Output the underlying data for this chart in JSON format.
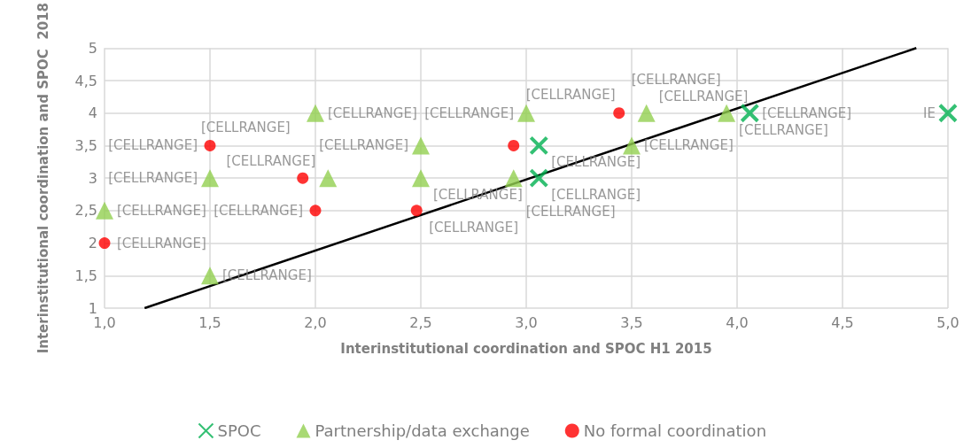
{
  "chart_data": {
    "type": "scatter",
    "xlabel": "Interinstitutional coordination and SPOC H1 2015",
    "ylabel": "Interinstitutional coordination and SPOC  2018",
    "xlim": [
      1,
      5
    ],
    "ylim": [
      1,
      5
    ],
    "xticks": [
      {
        "value": 1,
        "label": "1,0"
      },
      {
        "value": 1.5,
        "label": "1,5"
      },
      {
        "value": 2,
        "label": "2,0"
      },
      {
        "value": 2.5,
        "label": "2,5"
      },
      {
        "value": 3,
        "label": "3,0"
      },
      {
        "value": 3.5,
        "label": "3,5"
      },
      {
        "value": 4,
        "label": "4,0"
      },
      {
        "value": 4.5,
        "label": "4,5"
      },
      {
        "value": 5,
        "label": "5,0"
      }
    ],
    "yticks": [
      1,
      {
        "value": 1.5,
        "label": "1,5"
      },
      2,
      {
        "value": 2.5,
        "label": "2,5"
      },
      3,
      {
        "value": 3.5,
        "label": "3,5"
      },
      4,
      {
        "value": 4.5,
        "label": "4,5"
      },
      5
    ],
    "grid": true,
    "legend": "bottom",
    "series": [
      {
        "name": "SPOC",
        "color": "#00b050",
        "marker": "cross",
        "x": [
          3.06,
          3.06,
          4.06,
          5.0
        ],
        "values": [
          3.5,
          3.0,
          4.0,
          4.0
        ],
        "value_labels": [
          "[CELLRANGE]",
          "[CELLRANGE]",
          "[CELLRANGE]",
          "IE"
        ]
      },
      {
        "name": "Partnership/data exchange",
        "color": "#92d050",
        "marker": "triangle",
        "x": [
          1.0,
          1.5,
          1.5,
          2.0,
          2.06,
          2.5,
          2.5,
          2.94,
          3.0,
          3.5,
          3.57,
          3.95
        ],
        "values": [
          2.5,
          3.0,
          1.5,
          4.0,
          3.0,
          3.5,
          3.0,
          3.0,
          4.0,
          3.5,
          4.0,
          4.0
        ],
        "value_labels": [
          "[CELLRANGE]",
          "[CELLRANGE]",
          "[CELLRANGE]",
          "[CELLRANGE]",
          "[CELLRANGE]",
          "[CELLRANGE]",
          "[CELLRANGE]",
          "[CELLRANGE]",
          "[CELLRANGE]",
          "[CELLRANGE]",
          "[CELLRANGE]",
          "[CELLRANGE]"
        ]
      },
      {
        "name": "No formal coordination",
        "color": "#ff0000",
        "marker": "circle",
        "x": [
          1.0,
          1.5,
          1.94,
          2.0,
          2.48,
          2.94,
          3.44
        ],
        "values": [
          2.0,
          3.5,
          3.0,
          2.5,
          2.5,
          3.5,
          4.0
        ],
        "value_labels": [
          "[CELLRANGE]",
          "[CELLRANGE]",
          "[CELLRANGE]",
          "[CELLRANGE]",
          "[CELLRANGE]",
          "[CELLRANGE]",
          "[CELLRANGE]"
        ]
      },
      {
        "type": "line",
        "color": "#000000",
        "marker": "none",
        "x": [
          1.19,
          4.85
        ],
        "values": [
          1,
          5
        ]
      }
    ]
  }
}
